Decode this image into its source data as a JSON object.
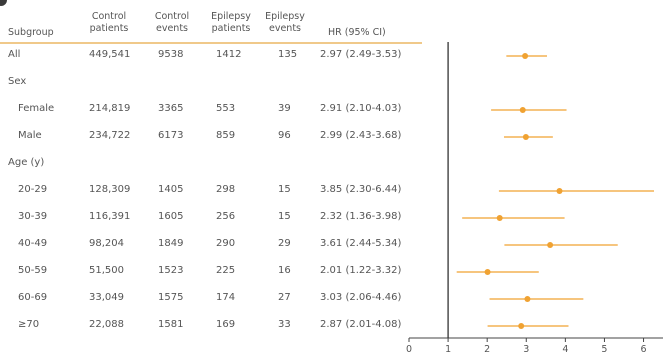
{
  "chart_data": {
    "type": "forest",
    "xlim": [
      0,
      6.6
    ],
    "x_ticks": [
      "0",
      "1",
      "2",
      "3",
      "4",
      "5",
      "6"
    ],
    "reference_line": 1,
    "marker_color": "#f0a232",
    "headers": {
      "subgroup": "Subgroup",
      "control_patients": [
        "Control",
        "patients"
      ],
      "control_events": [
        "Control",
        "events"
      ],
      "epilepsy_patients": [
        "Epilepsy",
        "patients"
      ],
      "epilepsy_events": [
        "Epilepsy",
        "events"
      ],
      "hr": "HR (95% CI)"
    },
    "rows": [
      {
        "kind": "data",
        "label": "All",
        "indent": false,
        "control_patients": "449,541",
        "control_events": "9538",
        "epilepsy_patients": "1412",
        "epilepsy_events": "135",
        "hr_text": "2.97 (2.49-3.53)",
        "hr": 2.97,
        "lo": 2.49,
        "hi": 3.53
      },
      {
        "kind": "group",
        "label": "Sex"
      },
      {
        "kind": "data",
        "label": "Female",
        "indent": true,
        "control_patients": "214,819",
        "control_events": "3365",
        "epilepsy_patients": "553",
        "epilepsy_events": "39",
        "hr_text": "2.91 (2.10-4.03)",
        "hr": 2.91,
        "lo": 2.1,
        "hi": 4.03
      },
      {
        "kind": "data",
        "label": "Male",
        "indent": true,
        "control_patients": "234,722",
        "control_events": "6173",
        "epilepsy_patients": "859",
        "epilepsy_events": "96",
        "hr_text": "2.99 (2.43-3.68)",
        "hr": 2.99,
        "lo": 2.43,
        "hi": 3.68
      },
      {
        "kind": "group",
        "label": "Age (y)"
      },
      {
        "kind": "data",
        "label": "20-29",
        "indent": true,
        "control_patients": "128,309",
        "control_events": "1405",
        "epilepsy_patients": "298",
        "epilepsy_events": "15",
        "hr_text": "3.85 (2.30-6.44)",
        "hr": 3.85,
        "lo": 2.3,
        "hi": 6.44
      },
      {
        "kind": "data",
        "label": "30-39",
        "indent": true,
        "control_patients": "116,391",
        "control_events": "1605",
        "epilepsy_patients": "256",
        "epilepsy_events": "15",
        "hr_text": "2.32 (1.36-3.98)",
        "hr": 2.32,
        "lo": 1.36,
        "hi": 3.98
      },
      {
        "kind": "data",
        "label": "40-49",
        "indent": true,
        "control_patients": "98,204",
        "control_events": "1849",
        "epilepsy_patients": "290",
        "epilepsy_events": "29",
        "hr_text": "3.61 (2.44-5.34)",
        "hr": 3.61,
        "lo": 2.44,
        "hi": 5.34
      },
      {
        "kind": "data",
        "label": "50-59",
        "indent": true,
        "control_patients": "51,500",
        "control_events": "1523",
        "epilepsy_patients": "225",
        "epilepsy_events": "16",
        "hr_text": "2.01 (1.22-3.32)",
        "hr": 2.01,
        "lo": 1.22,
        "hi": 3.32
      },
      {
        "kind": "data",
        "label": "60-69",
        "indent": true,
        "control_patients": "33,049",
        "control_events": "1575",
        "epilepsy_patients": "174",
        "epilepsy_events": "27",
        "hr_text": "3.03 (2.06-4.46)",
        "hr": 3.03,
        "lo": 2.06,
        "hi": 4.46
      },
      {
        "kind": "data",
        "label": "≥70",
        "indent": true,
        "control_patients": "22,088",
        "control_events": "1581",
        "epilepsy_patients": "169",
        "epilepsy_events": "33",
        "hr_text": "2.87 (2.01-4.08)",
        "hr": 2.87,
        "lo": 2.01,
        "hi": 4.08
      }
    ]
  }
}
